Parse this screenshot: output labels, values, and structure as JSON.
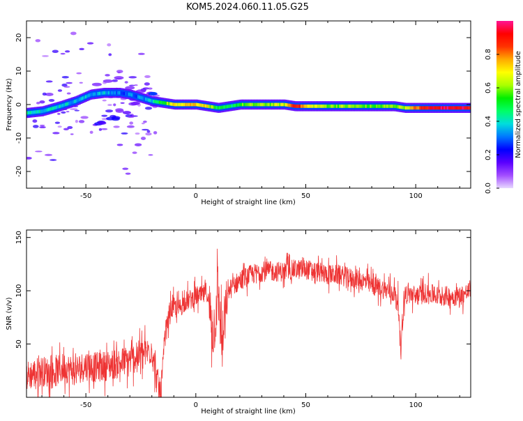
{
  "title": "KOM5.2024.060.11.05.G25",
  "chart_data": [
    {
      "type": "heatmap",
      "xlabel": "Height of straight line (km)",
      "ylabel": "Frequency (Hz)",
      "xlim": [
        -77,
        125
      ],
      "ylim": [
        -25,
        25
      ],
      "xticks": [
        -50,
        0,
        50,
        100
      ],
      "yticks": [
        -20,
        -10,
        0,
        10,
        20
      ],
      "colorbar": {
        "label": "Normalized spectral amplitude",
        "range": [
          0,
          1
        ],
        "ticks": [
          0.0,
          0.2,
          0.4,
          0.6,
          0.8
        ],
        "colors": [
          "#e8d8ff",
          "#a24dff",
          "#5a00ff",
          "#0000ff",
          "#0077ff",
          "#00dddd",
          "#00ff66",
          "#00ee00",
          "#aaff00",
          "#ffff00",
          "#ffaa00",
          "#ff3300",
          "#ff0000",
          "#ff1493"
        ]
      },
      "ridge": [
        {
          "x": -77,
          "y": -2.5,
          "a": 0.45
        },
        {
          "x": -70,
          "y": -2.0,
          "a": 0.4
        },
        {
          "x": -62,
          "y": -0.5,
          "a": 0.4
        },
        {
          "x": -55,
          "y": 1.0,
          "a": 0.35
        },
        {
          "x": -48,
          "y": 3.0,
          "a": 0.35
        },
        {
          "x": -42,
          "y": 3.5,
          "a": 0.35
        },
        {
          "x": -35,
          "y": 3.5,
          "a": 0.3
        },
        {
          "x": -30,
          "y": 3.0,
          "a": 0.3
        },
        {
          "x": -25,
          "y": 2.0,
          "a": 0.3
        },
        {
          "x": -20,
          "y": 1.0,
          "a": 0.4
        },
        {
          "x": -15,
          "y": 0.5,
          "a": 0.55
        },
        {
          "x": -10,
          "y": 0.0,
          "a": 0.7
        },
        {
          "x": -5,
          "y": 0.0,
          "a": 0.75
        },
        {
          "x": 0,
          "y": 0.0,
          "a": 0.75
        },
        {
          "x": 5,
          "y": -0.5,
          "a": 0.7
        },
        {
          "x": 10,
          "y": -1.0,
          "a": 0.45
        },
        {
          "x": 15,
          "y": -0.5,
          "a": 0.45
        },
        {
          "x": 20,
          "y": 0.0,
          "a": 0.55
        },
        {
          "x": 30,
          "y": 0.0,
          "a": 0.6
        },
        {
          "x": 40,
          "y": 0.0,
          "a": 0.65
        },
        {
          "x": 45,
          "y": -0.5,
          "a": 0.95
        },
        {
          "x": 50,
          "y": -0.5,
          "a": 0.7
        },
        {
          "x": 60,
          "y": -0.5,
          "a": 0.6
        },
        {
          "x": 70,
          "y": -0.5,
          "a": 0.6
        },
        {
          "x": 80,
          "y": -0.5,
          "a": 0.55
        },
        {
          "x": 90,
          "y": -0.5,
          "a": 0.6
        },
        {
          "x": 95,
          "y": -1.0,
          "a": 0.65
        },
        {
          "x": 100,
          "y": -1.0,
          "a": 0.8
        },
        {
          "x": 105,
          "y": -1.0,
          "a": 0.9
        },
        {
          "x": 110,
          "y": -1.0,
          "a": 0.95
        },
        {
          "x": 118,
          "y": -1.0,
          "a": 0.95
        },
        {
          "x": 125,
          "y": -1.0,
          "a": 0.9
        }
      ]
    },
    {
      "type": "line",
      "xlabel": "Height of straight line (km)",
      "ylabel": "SNR (v/v)",
      "xlim": [
        -77,
        125
      ],
      "ylim": [
        0,
        157
      ],
      "xticks": [
        -50,
        0,
        50,
        100
      ],
      "yticks": [
        50,
        100,
        150
      ],
      "color": "#ee3333",
      "series": [
        {
          "x": [
            -77,
            -70,
            -65,
            -60,
            -55,
            -50,
            -45,
            -40,
            -35,
            -30,
            -25,
            -22,
            -20,
            -18,
            -16,
            -14,
            -12,
            -10,
            -8,
            -5,
            -2,
            0,
            3,
            5,
            8,
            10,
            12,
            15,
            20,
            25,
            30,
            35,
            40,
            45,
            50,
            55,
            60,
            65,
            70,
            75,
            80,
            85,
            90,
            92,
            93,
            95,
            100,
            105,
            110,
            115,
            120,
            125
          ],
          "y": [
            20,
            25,
            22,
            28,
            25,
            30,
            28,
            30,
            32,
            35,
            40,
            42,
            45,
            20,
            0,
            55,
            80,
            85,
            82,
            90,
            92,
            95,
            95,
            100,
            60,
            100,
            50,
            100,
            110,
            115,
            118,
            118,
            118,
            120,
            120,
            118,
            115,
            115,
            112,
            110,
            105,
            102,
            98,
            90,
            45,
            98,
            95,
            98,
            95,
            95,
            95,
            100
          ]
        }
      ]
    }
  ]
}
